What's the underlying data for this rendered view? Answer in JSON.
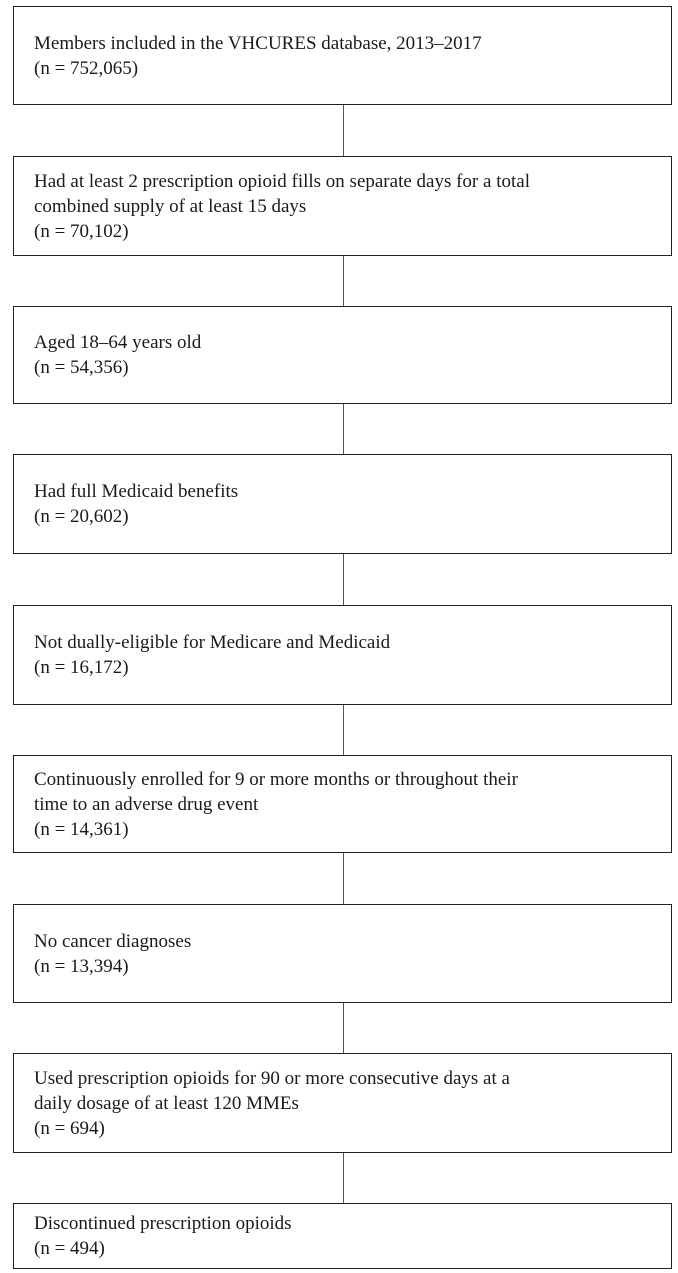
{
  "flowchart": {
    "steps": [
      {
        "lines": [
          "Members included in the VHCURES database, 2013–2017"
        ],
        "count": "(n = 752,065)"
      },
      {
        "lines": [
          "Had at least 2 prescription opioid fills on separate days for a total",
          "combined supply of at least 15 days"
        ],
        "count": "(n = 70,102)"
      },
      {
        "lines": [
          "Aged 18–64 years old"
        ],
        "count": "(n = 54,356)"
      },
      {
        "lines": [
          "Had full Medicaid benefits"
        ],
        "count": "(n = 20,602)"
      },
      {
        "lines": [
          "Not dually-eligible for Medicare and Medicaid"
        ],
        "count": "(n = 16,172)"
      },
      {
        "lines": [
          "Continuously enrolled for 9 or more months or throughout their",
          "time to an adverse drug event"
        ],
        "count": "(n = 14,361)"
      },
      {
        "lines": [
          "No cancer diagnoses"
        ],
        "count": "(n = 13,394)"
      },
      {
        "lines": [
          "Used prescription opioids for 90 or more consecutive days at a",
          "daily dosage of at least 120 MMEs"
        ],
        "count": "(n = 694)"
      },
      {
        "lines": [
          "Discontinued prescription opioids"
        ],
        "count": "(n = 494)"
      }
    ]
  },
  "colors": {
    "border": "#222222",
    "connector": "#555555",
    "text": "#1a1a1a",
    "background": "#ffffff"
  }
}
